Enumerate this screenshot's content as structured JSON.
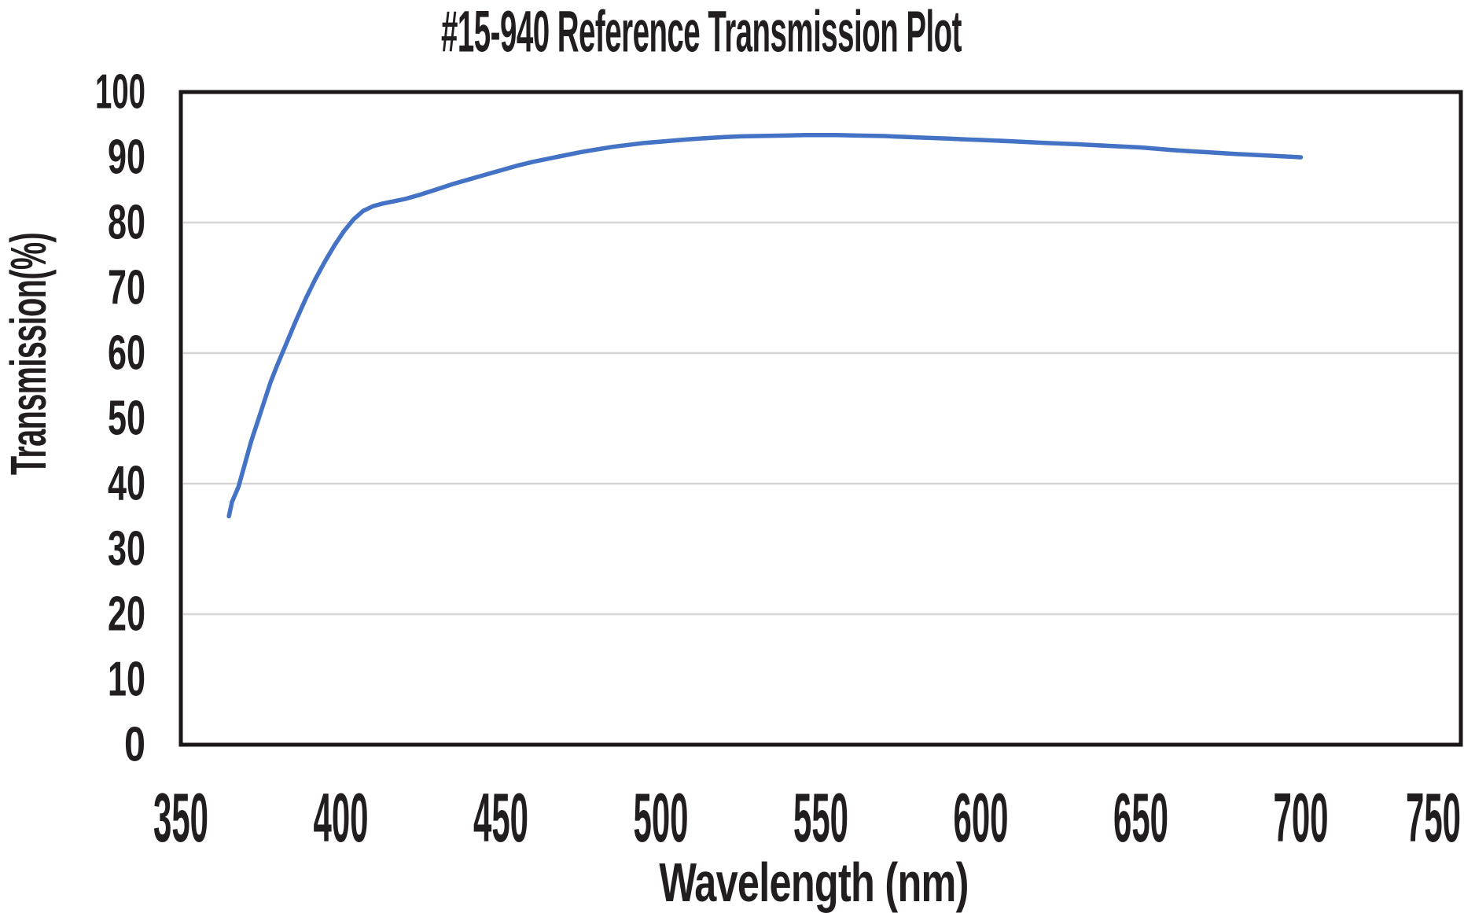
{
  "title": "#15-940 Reference Transmission Plot",
  "chart_data": {
    "type": "line",
    "title": "#15-940 Reference Transmission Plot",
    "xlabel": "Wavelength (nm)",
    "ylabel": "Transmission(%)",
    "xlim": [
      350,
      750
    ],
    "ylim": [
      0,
      100
    ],
    "x_ticks": [
      350,
      400,
      450,
      500,
      550,
      600,
      650,
      700,
      750
    ],
    "y_ticks": [
      0,
      10,
      20,
      30,
      40,
      50,
      60,
      70,
      80,
      90,
      100
    ],
    "y_gridlines": [
      20,
      40,
      60,
      80
    ],
    "grid": "horizontal-light-gray",
    "legend": "none",
    "line_color": "#4472c4",
    "border_color": "#1b1718",
    "gridline_color": "#d6d6d6",
    "series": [
      {
        "name": "Reference Transmission",
        "points": [
          [
            365,
            35.0
          ],
          [
            366,
            37.2
          ],
          [
            368,
            39.5
          ],
          [
            370,
            43.0
          ],
          [
            372,
            46.5
          ],
          [
            374,
            49.5
          ],
          [
            376,
            52.5
          ],
          [
            378,
            55.5
          ],
          [
            380,
            58.0
          ],
          [
            383,
            61.5
          ],
          [
            386,
            65.0
          ],
          [
            389,
            68.3
          ],
          [
            392,
            71.3
          ],
          [
            395,
            74.0
          ],
          [
            398,
            76.5
          ],
          [
            401,
            78.7
          ],
          [
            404,
            80.5
          ],
          [
            407,
            81.8
          ],
          [
            410,
            82.5
          ],
          [
            413,
            82.9
          ],
          [
            416,
            83.2
          ],
          [
            420,
            83.6
          ],
          [
            425,
            84.3
          ],
          [
            430,
            85.1
          ],
          [
            435,
            85.9
          ],
          [
            440,
            86.6
          ],
          [
            445,
            87.3
          ],
          [
            450,
            88.0
          ],
          [
            455,
            88.7
          ],
          [
            460,
            89.3
          ],
          [
            465,
            89.8
          ],
          [
            470,
            90.3
          ],
          [
            475,
            90.8
          ],
          [
            480,
            91.2
          ],
          [
            485,
            91.6
          ],
          [
            490,
            91.9
          ],
          [
            495,
            92.2
          ],
          [
            500,
            92.4
          ],
          [
            505,
            92.6
          ],
          [
            510,
            92.8
          ],
          [
            515,
            92.95
          ],
          [
            520,
            93.1
          ],
          [
            525,
            93.2
          ],
          [
            530,
            93.25
          ],
          [
            535,
            93.3
          ],
          [
            540,
            93.35
          ],
          [
            545,
            93.4
          ],
          [
            550,
            93.4
          ],
          [
            555,
            93.4
          ],
          [
            560,
            93.35
          ],
          [
            565,
            93.3
          ],
          [
            570,
            93.25
          ],
          [
            575,
            93.15
          ],
          [
            580,
            93.05
          ],
          [
            585,
            92.95
          ],
          [
            590,
            92.85
          ],
          [
            595,
            92.75
          ],
          [
            600,
            92.65
          ],
          [
            610,
            92.45
          ],
          [
            620,
            92.2
          ],
          [
            630,
            92.0
          ],
          [
            640,
            91.75
          ],
          [
            650,
            91.5
          ],
          [
            660,
            91.1
          ],
          [
            670,
            90.8
          ],
          [
            680,
            90.5
          ],
          [
            690,
            90.25
          ],
          [
            700,
            90.0
          ]
        ]
      }
    ]
  }
}
